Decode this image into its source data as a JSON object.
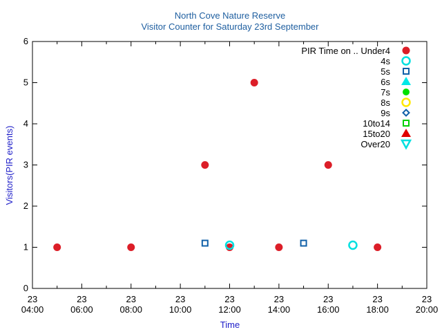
{
  "chart_data": {
    "type": "scatter",
    "title": "North Cove Nature Reserve",
    "subtitle": "Visitor Counter for Saturday 23rd September",
    "xlabel": "Time",
    "ylabel": "Visitors(PIR events)",
    "xlim": [
      "04:00",
      "20:00"
    ],
    "ylim": [
      0,
      6
    ],
    "x_ticks": [
      {
        "day": "23",
        "time": "04:00"
      },
      {
        "day": "23",
        "time": "06:00"
      },
      {
        "day": "23",
        "time": "08:00"
      },
      {
        "day": "23",
        "time": "10:00"
      },
      {
        "day": "23",
        "time": "12:00"
      },
      {
        "day": "23",
        "time": "14:00"
      },
      {
        "day": "23",
        "time": "16:00"
      },
      {
        "day": "23",
        "time": "18:00"
      },
      {
        "day": "23",
        "time": "20:00"
      }
    ],
    "y_ticks": [
      "0",
      "1",
      "2",
      "3",
      "4",
      "5",
      "6"
    ],
    "legend_title": "PIR Time on ..",
    "legend_position": "top-right",
    "grid": false,
    "series": [
      {
        "name": "Under4",
        "marker": "filled-circle",
        "color": "#dc1e28",
        "points": [
          {
            "x": "05:00",
            "y": 1
          },
          {
            "x": "08:00",
            "y": 1
          },
          {
            "x": "11:00",
            "y": 3
          },
          {
            "x": "12:00",
            "y": 1
          },
          {
            "x": "13:00",
            "y": 5
          },
          {
            "x": "14:00",
            "y": 1
          },
          {
            "x": "16:00",
            "y": 3
          },
          {
            "x": "18:00",
            "y": 1
          }
        ]
      },
      {
        "name": "4s",
        "marker": "open-circle",
        "color": "#00e0e0",
        "points": [
          {
            "x": "12:00",
            "y": 1.05
          },
          {
            "x": "17:00",
            "y": 1.05
          }
        ]
      },
      {
        "name": "5s",
        "marker": "open-square",
        "color": "#1060a8",
        "points": [
          {
            "x": "11:00",
            "y": 1.1
          },
          {
            "x": "15:00",
            "y": 1.1
          }
        ]
      },
      {
        "name": "6s",
        "marker": "filled-triangle",
        "color": "#00e8e8",
        "points": []
      },
      {
        "name": "7s",
        "marker": "filled-circle-small",
        "color": "#00e000",
        "points": []
      },
      {
        "name": "8s",
        "marker": "open-circle",
        "color": "#ffe800",
        "points": []
      },
      {
        "name": "9s",
        "marker": "open-diamond",
        "color": "#1060a8",
        "points": []
      },
      {
        "name": "10to14",
        "marker": "open-square",
        "color": "#00d000",
        "points": []
      },
      {
        "name": "15to20",
        "marker": "filled-triangle",
        "color": "#e00000",
        "points": []
      },
      {
        "name": "Over20",
        "marker": "open-triangle-down",
        "color": "#00e0e0",
        "points": []
      }
    ]
  }
}
